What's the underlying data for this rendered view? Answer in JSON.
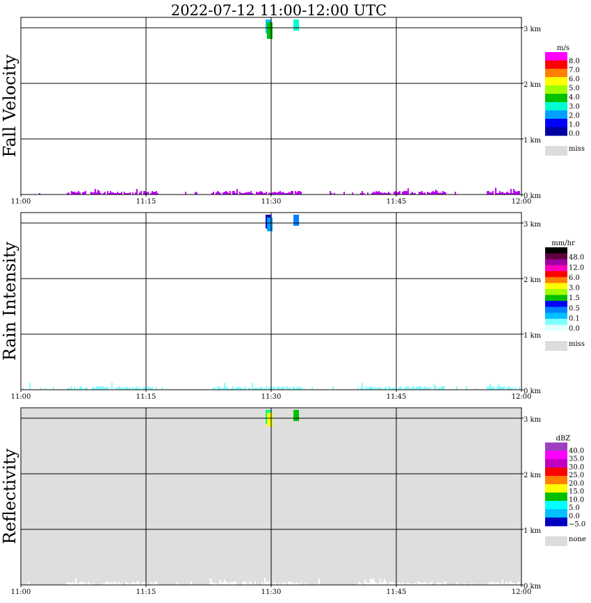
{
  "title": "2022-07-12   11:00-12:00 UTC",
  "colors": {
    "miss": "#dcdcdc",
    "grid": "#000000",
    "reflectivity_background": "#dedede"
  },
  "chart_data": [
    {
      "type": "heatmap",
      "ylabel": "Fall Velocity",
      "x_ticks": [
        "11:00",
        "11:15",
        "11:30",
        "11:45",
        "12:00"
      ],
      "x_range": [
        "11:00",
        "12:00"
      ],
      "y_ticks": [
        "1 km",
        "2 km",
        "3 km",
        "0 km"
      ],
      "y_range_km": [
        0,
        3.2
      ],
      "grid": true,
      "colorbar": {
        "unit": "m/s",
        "labels": [
          "8.0",
          "7.0",
          "6.0",
          "5.0",
          "4.0",
          "3.0",
          "2.0",
          "1.0",
          "0.0"
        ],
        "colors": [
          "#ff00ff",
          "#ff0000",
          "#ff8000",
          "#ffff00",
          "#a0ff00",
          "#00c000",
          "#00ffd0",
          "#00a0ff",
          "#0000ff",
          "#0000a0"
        ],
        "miss_label": "miss"
      },
      "near_ground_color": "#c000ff",
      "echoes": [
        {
          "time": "11:29:40",
          "top_km": 3.15,
          "bottom_km": 2.9,
          "color": "#00c0ff"
        },
        {
          "time": "11:29:50",
          "top_km": 3.1,
          "bottom_km": 2.8,
          "color": "#00c000"
        },
        {
          "time": "11:33:00",
          "top_km": 3.15,
          "bottom_km": 2.95,
          "color": "#00ffd0"
        }
      ]
    },
    {
      "type": "heatmap",
      "ylabel": "Rain Intensity",
      "x_ticks": [
        "11:00",
        "11:15",
        "11:30",
        "11:45",
        "12:00"
      ],
      "x_range": [
        "11:00",
        "12:00"
      ],
      "y_ticks": [
        "1 km",
        "2 km",
        "3 km",
        "0 km"
      ],
      "y_range_km": [
        0,
        3.2
      ],
      "grid": true,
      "colorbar": {
        "unit": "mm/hr",
        "labels": [
          "48.0",
          "12.0",
          "6.0",
          "3.0",
          "1.5",
          "0.5",
          "0.1",
          "0.0"
        ],
        "colors": [
          "#000000",
          "#600040",
          "#a000a0",
          "#ff00c0",
          "#ff0000",
          "#ff8000",
          "#ffff00",
          "#a0ff00",
          "#00c000",
          "#0000ff",
          "#0080ff",
          "#00c0ff",
          "#80ffff",
          "#e0ffff"
        ],
        "miss_label": "miss"
      },
      "near_ground_color": "#80ffff",
      "echoes": [
        {
          "time": "11:29:40",
          "top_km": 3.15,
          "bottom_km": 2.9,
          "color": "#0000c0"
        },
        {
          "time": "11:29:50",
          "top_km": 3.1,
          "bottom_km": 2.85,
          "color": "#00a0ff"
        },
        {
          "time": "11:33:00",
          "top_km": 3.15,
          "bottom_km": 2.95,
          "color": "#0080ff"
        }
      ]
    },
    {
      "type": "heatmap",
      "ylabel": "Reflectivity",
      "x_ticks": [
        "11:00",
        "11:15",
        "11:30",
        "11:45",
        "12:00"
      ],
      "x_range": [
        "11:00",
        "12:00"
      ],
      "y_ticks": [
        "1 km",
        "2 km",
        "3 km",
        "0 km"
      ],
      "y_range_km": [
        0,
        3.2
      ],
      "grid": true,
      "colorbar": {
        "unit": "dBZ",
        "labels": [
          "40.0",
          "35.0",
          "30.0",
          "25.0",
          "20.0",
          "15.0",
          "10.0",
          "5.0",
          "0.0",
          "−5.0"
        ],
        "colors": [
          "#a040c0",
          "#ff00ff",
          "#c000c0",
          "#ff0000",
          "#ff8000",
          "#ffff00",
          "#00c000",
          "#00ffff",
          "#00c0ff",
          "#0000c0"
        ],
        "miss_label": "none"
      },
      "near_ground_color": "#ffffff",
      "echoes": [
        {
          "time": "11:29:40",
          "top_km": 3.15,
          "bottom_km": 2.9,
          "color": "#00ff80"
        },
        {
          "time": "11:29:50",
          "top_km": 3.1,
          "bottom_km": 2.85,
          "color": "#ffff00"
        },
        {
          "time": "11:33:00",
          "top_km": 3.15,
          "bottom_km": 2.95,
          "color": "#00c000"
        }
      ]
    }
  ]
}
